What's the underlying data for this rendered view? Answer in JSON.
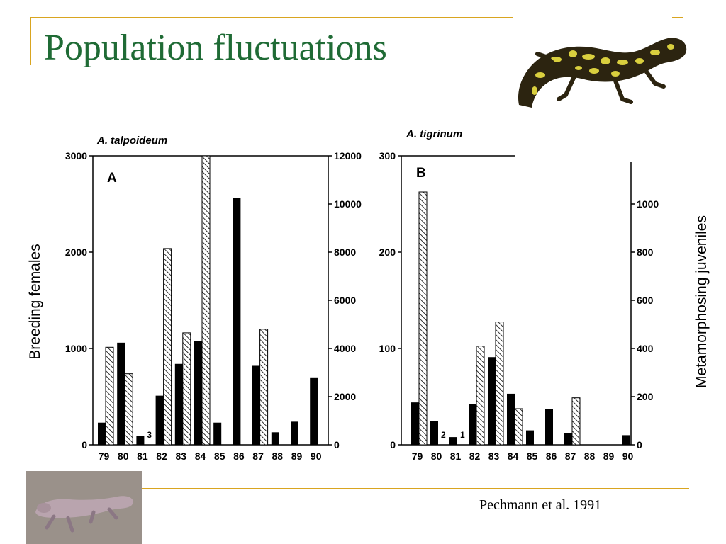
{
  "slide": {
    "title": "Population fluctuations",
    "citation": "Pechmann et al. 1991",
    "accent_color": "#d9a520",
    "title_color": "#1f6b35"
  },
  "axis_titles": {
    "left": "Breeding females",
    "right": "Metamorphosing juveniles"
  },
  "images": {
    "top_right": "tiger-salamander-photo",
    "bottom_left": "mole-salamander-photo"
  },
  "chart_data": [
    {
      "type": "bar",
      "title": "A. talpoideum",
      "panel_label": "A",
      "categories": [
        "79",
        "80",
        "81",
        "82",
        "83",
        "84",
        "85",
        "86",
        "87",
        "88",
        "89",
        "90"
      ],
      "series": [
        {
          "values": [
            230,
            1060,
            90,
            510,
            840,
            1080,
            230,
            2560,
            820,
            130,
            240,
            700
          ],
          "color": "#000000",
          "fill": "solid"
        },
        {
          "values": [
            4050,
            2950,
            null,
            8150,
            4650,
            12000,
            null,
            null,
            4800,
            null,
            null,
            null
          ],
          "color": "#000000",
          "fill": "hatched"
        }
      ],
      "left_axis": {
        "ylim": [
          0,
          3000
        ],
        "ticks": [
          "0",
          "1000",
          "2000",
          "3000"
        ]
      },
      "right_axis": {
        "ylim": [
          0,
          12000
        ],
        "ticks": [
          "0",
          "2000",
          "4000",
          "6000",
          "8000",
          "10000",
          "12000"
        ]
      },
      "annotations": [
        {
          "category": "81",
          "text": "3"
        }
      ]
    },
    {
      "type": "bar",
      "title": "A. tigrinum",
      "panel_label": "B",
      "categories": [
        "79",
        "80",
        "81",
        "82",
        "83",
        "84",
        "85",
        "86",
        "87",
        "88",
        "89",
        "90"
      ],
      "series": [
        {
          "values": [
            44,
            25,
            8,
            42,
            91,
            53,
            15,
            37,
            12,
            0,
            0,
            10
          ],
          "color": "#000000",
          "fill": "solid"
        },
        {
          "values": [
            1050,
            null,
            null,
            410,
            510,
            150,
            null,
            null,
            195,
            null,
            null,
            null
          ],
          "color": "#000000",
          "fill": "hatched"
        }
      ],
      "left_axis": {
        "ylim": [
          0,
          300
        ],
        "ticks": [
          "0",
          "100",
          "200",
          "300"
        ]
      },
      "right_axis": {
        "ylim": [
          0,
          1200
        ],
        "ticks": [
          "0",
          "200",
          "400",
          "600",
          "800",
          "1000"
        ]
      },
      "annotations": [
        {
          "category": "80",
          "text": "2"
        },
        {
          "category": "81",
          "text": "1"
        }
      ]
    }
  ]
}
